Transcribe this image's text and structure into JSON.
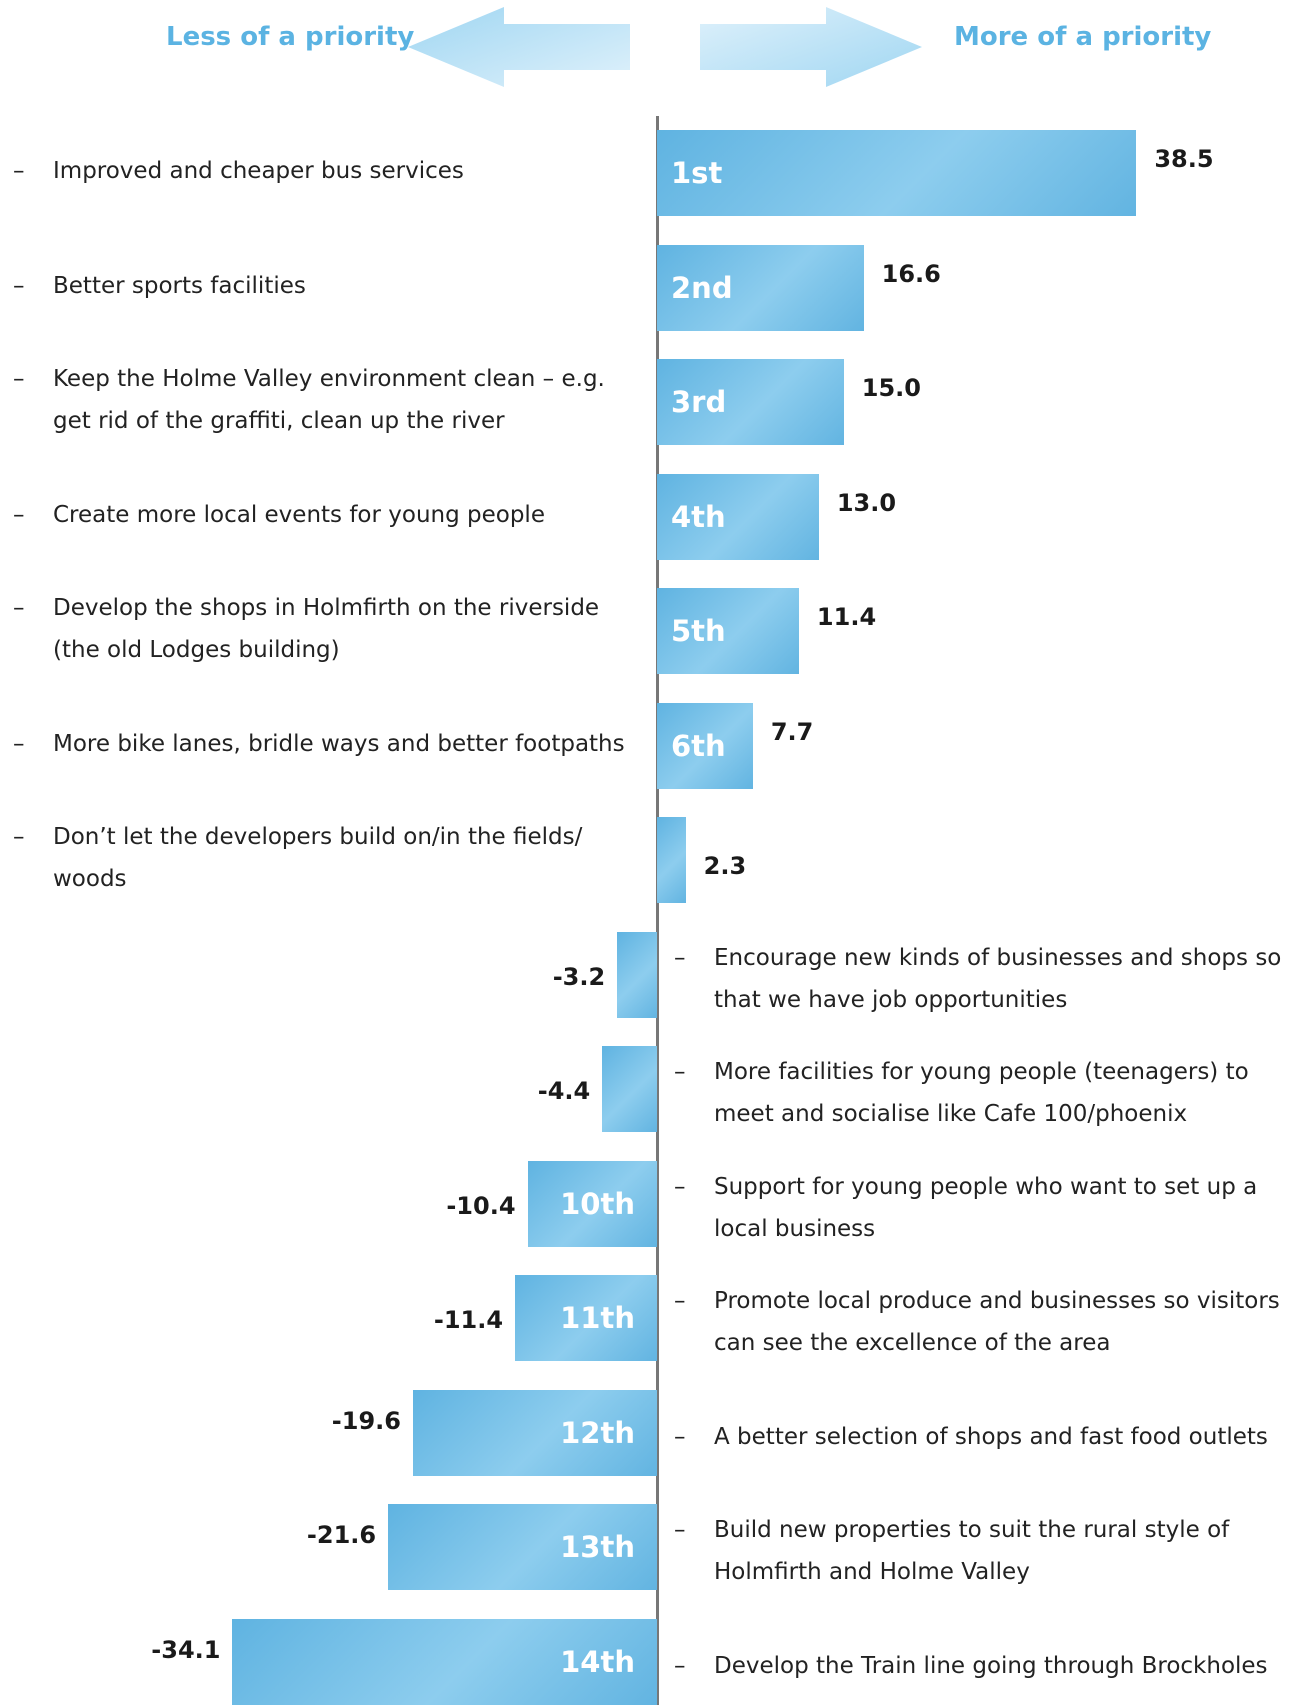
{
  "header": {
    "left_label": "Less of a priority",
    "right_label": "More of a priority"
  },
  "colors": {
    "bar": "#6bbbe5",
    "header_text": "#5bb3e2",
    "axis": "#777777"
  },
  "chart_data": {
    "type": "bar",
    "orientation": "horizontal",
    "xlim": [
      -34.1,
      38.5
    ],
    "categories": [
      "Improved and cheaper bus services",
      "Better sports facilities",
      "Keep the Holme Valley environment  clean – e.g. get rid of the graffiti, clean up the river",
      "Create more local events for young people",
      "Develop the shops in Holmfirth on the riverside (the old Lodges building)",
      "More bike lanes, bridle ways and better footpaths",
      "Don’t let the developers build on/in the fields/ woods",
      "Encourage new kinds of businesses and shops so that we have job opportunities",
      "More facilities for young people (teenagers) to meet and socialise like Cafe 100/phoenix",
      "Support for young people who want to set up a local business",
      "Promote local produce and businesses so visitors can see the excellence of the area",
      "A better selection of shops and fast food outlets",
      "Build new properties to suit the rural style of Holmfirth and Holme Valley",
      "Develop the Train line going through Brockholes"
    ],
    "category_lines": [
      [
        "Improved and cheaper bus services"
      ],
      [
        "Better sports facilities"
      ],
      [
        "Keep the Holme Valley environment  clean – e.g.",
        "get rid of the graffiti, clean up the river"
      ],
      [
        "Create more local events for young people"
      ],
      [
        "Develop the shops in Holmfirth on the riverside",
        "(the old Lodges building)"
      ],
      [
        "More bike lanes, bridle ways and better footpaths"
      ],
      [
        "Don’t let the developers build on/in the fields/",
        "woods"
      ],
      [
        "Encourage new kinds of businesses and shops so",
        "that we have job opportunities"
      ],
      [
        "More facilities for young people (teenagers) to",
        "meet and socialise like Cafe 100/phoenix"
      ],
      [
        "Support for young people who want to set up a",
        "local business"
      ],
      [
        "Promote local produce and businesses so visitors",
        "can see the excellence of the area"
      ],
      [
        "A better selection of shops and fast food outlets"
      ],
      [
        "Build new properties to suit the rural style of",
        "Holmfirth and Holme Valley"
      ],
      [
        "Develop the Train line going through Brockholes"
      ]
    ],
    "values": [
      38.5,
      16.6,
      15.0,
      13.0,
      11.4,
      7.7,
      2.3,
      -3.2,
      -4.4,
      -10.4,
      -11.4,
      -19.6,
      -21.6,
      -34.1
    ],
    "value_labels": [
      "38.5",
      "16.6",
      "15.0",
      "13.0",
      "11.4",
      "7.7",
      "2.3",
      "-3.2",
      "-4.4",
      "-10.4",
      "-11.4",
      "-19.6",
      "-21.6",
      "-34.1"
    ],
    "rank_labels": [
      "1st",
      "2nd",
      "3rd",
      "4th",
      "5th",
      "6th",
      "",
      "",
      "",
      "10th",
      "11th",
      "12th",
      "13th",
      "14th"
    ],
    "dash": "–"
  }
}
